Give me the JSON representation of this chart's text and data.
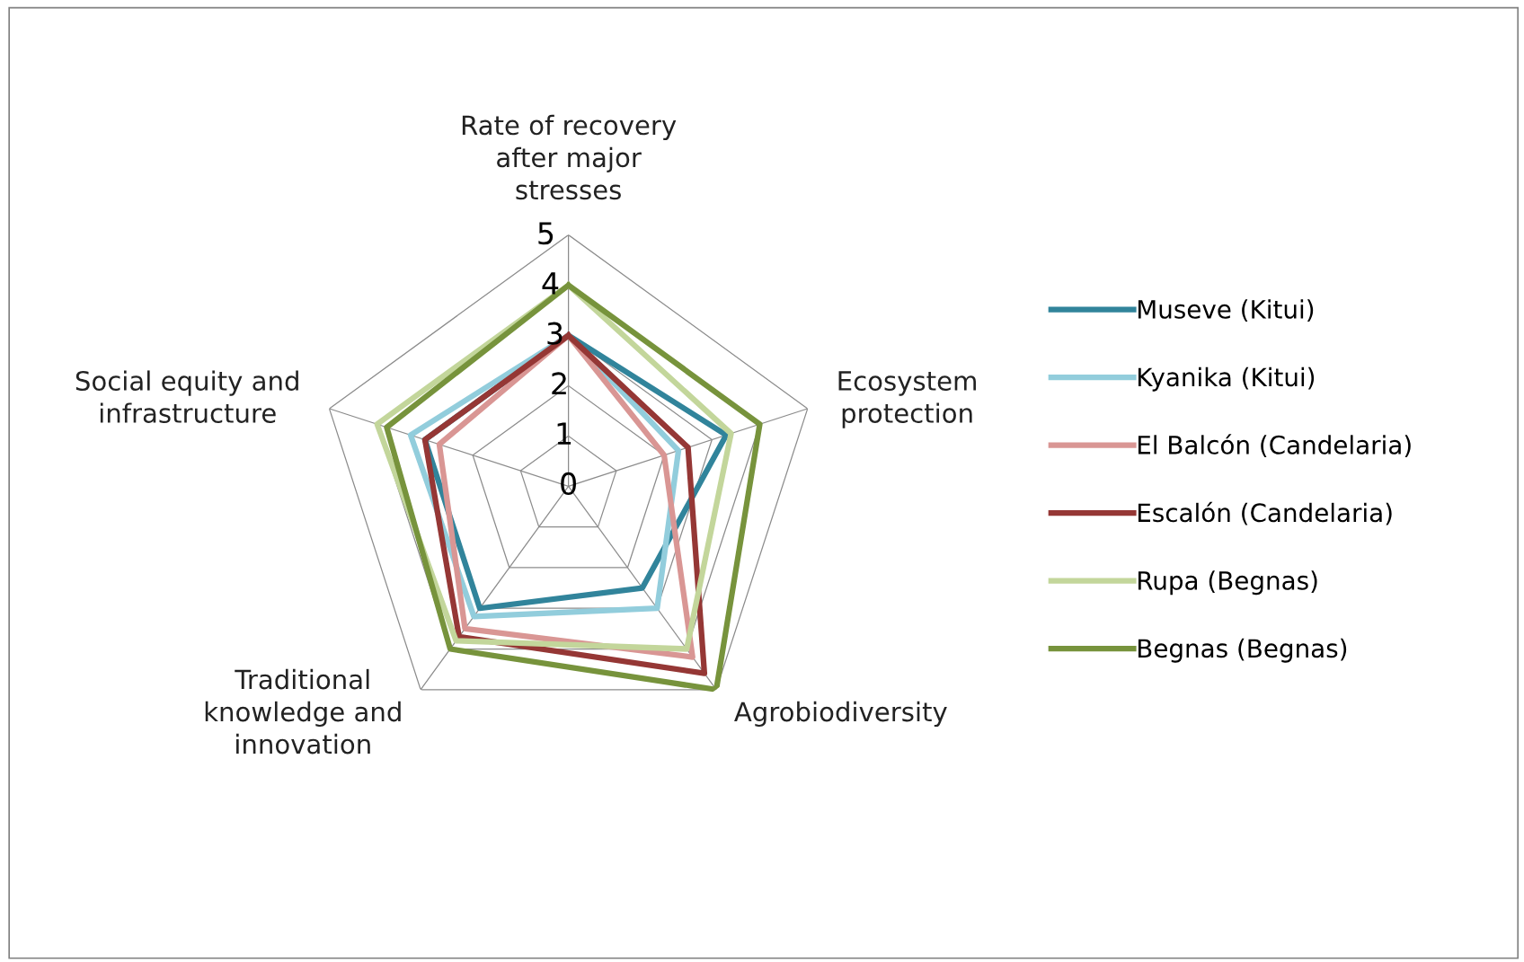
{
  "chart_data": {
    "type": "radar",
    "categories": [
      "Rate of recovery\nafter major\nstresses",
      "Ecosystem\nprotection",
      "Agrobiodiversity",
      "Traditional\nknowledge and\ninnovation",
      "Social equity and\ninfrastructure"
    ],
    "series": [
      {
        "name": "Museve (Kitui)",
        "color": "#31849b",
        "values": [
          3,
          3.3,
          2.5,
          3,
          3
        ]
      },
      {
        "name": "Kyanika (Kitui)",
        "color": "#92cddc",
        "values": [
          3,
          2.3,
          3,
          3.2,
          3.3
        ]
      },
      {
        "name": "El Balcón (Candelaria)",
        "color": "#d99694",
        "values": [
          3,
          2,
          4.2,
          3.5,
          2.7
        ]
      },
      {
        "name": "Escalón (Candelaria)",
        "color": "#953735",
        "values": [
          3,
          2.5,
          4.6,
          3.7,
          3
        ]
      },
      {
        "name": "Rupa (Begnas)",
        "color": "#c3d69b",
        "values": [
          4,
          3.4,
          4,
          3.8,
          4
        ]
      },
      {
        "name": "Begnas (Begnas)",
        "color": "#77933c",
        "values": [
          4,
          4,
          5,
          4,
          3.8
        ]
      }
    ],
    "ylim": [
      0,
      5
    ],
    "yticks": [
      0,
      1,
      2,
      3,
      4,
      5
    ],
    "grid": true,
    "legend": "right",
    "marker": "none"
  }
}
